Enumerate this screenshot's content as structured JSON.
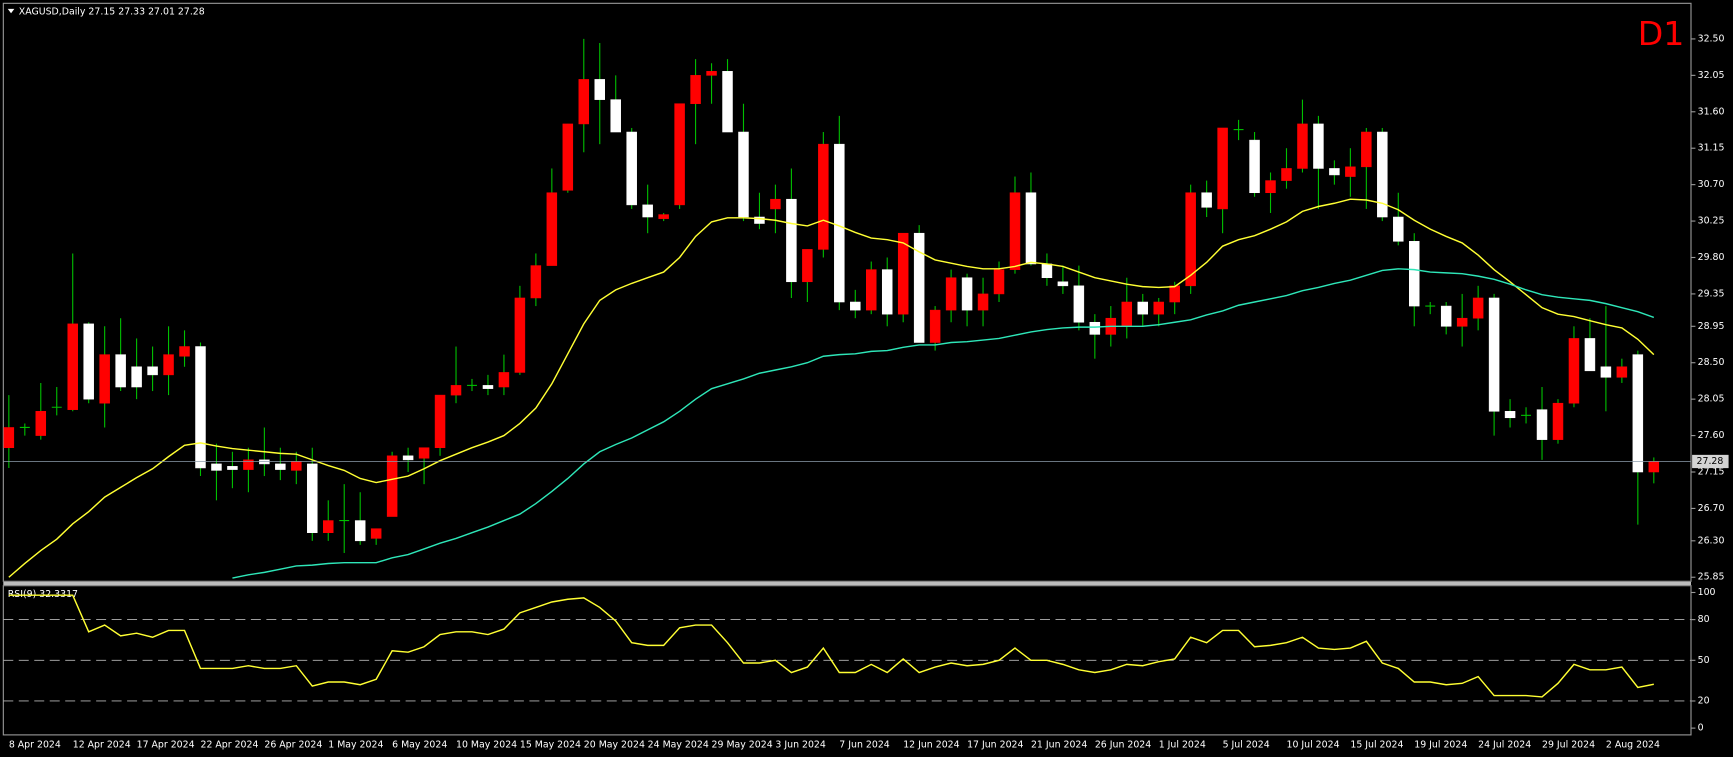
{
  "chart_data": [
    {
      "type": "candlestick",
      "title": "XAGUSD,Daily  27.15 27.33 27.01 27.28",
      "timeframe": "D1",
      "categories": [
        "8 Apr 2024",
        null,
        null,
        null,
        "12 Apr 2024",
        null,
        null,
        null,
        "17 Apr 2024",
        null,
        null,
        null,
        "22 Apr 2024",
        null,
        null,
        null,
        "26 Apr 2024",
        null,
        null,
        null,
        "1 May 2024",
        null,
        null,
        null,
        "6 May 2024",
        null,
        null,
        null,
        "10 May 2024",
        null,
        null,
        null,
        "15 May 2024",
        null,
        null,
        null,
        "20 May 2024",
        null,
        null,
        null,
        "24 May 2024",
        null,
        null,
        null,
        "29 May 2024",
        null,
        null,
        null,
        "3 Jun 2024",
        null,
        null,
        null,
        "7 Jun 2024",
        null,
        null,
        null,
        "12 Jun 2024",
        null,
        null,
        null,
        "17 Jun 2024",
        null,
        null,
        null,
        "21 Jun 2024",
        null,
        null,
        null,
        "26 Jun 2024",
        null,
        null,
        null,
        "1 Jul 2024",
        null,
        null,
        null,
        "5 Jul 2024",
        null,
        null,
        null,
        "10 Jul 2024",
        null,
        null,
        null,
        "15 Jul 2024",
        null,
        null,
        null,
        "19 Jul 2024",
        null,
        null,
        null,
        "24 Jul 2024",
        null,
        null,
        null,
        "29 Jul 2024",
        null,
        null,
        null,
        "2 Aug 2024",
        null,
        null,
        null
      ],
      "open": [
        27.45,
        27.7,
        27.6,
        27.95,
        27.92,
        28.98,
        28.0,
        28.6,
        28.45,
        28.45,
        28.35,
        28.58,
        28.7,
        27.25,
        27.22,
        27.18,
        27.3,
        27.25,
        27.17,
        27.25,
        26.4,
        26.55,
        26.55,
        26.33,
        26.6,
        27.35,
        27.32,
        27.45,
        28.1,
        28.22,
        28.22,
        28.2,
        28.38,
        29.3,
        29.7,
        30.63,
        31.45,
        32.0,
        31.75,
        31.35,
        30.45,
        30.28,
        30.45,
        31.7,
        32.05,
        32.1,
        31.35,
        30.3,
        30.4,
        30.52,
        29.5,
        29.9,
        31.2,
        29.25,
        29.15,
        29.65,
        29.1,
        30.1,
        28.75,
        29.15,
        29.55,
        29.15,
        29.35,
        29.65,
        30.6,
        29.72,
        29.5,
        29.45,
        29.0,
        28.85,
        28.95,
        29.25,
        29.1,
        29.25,
        29.45,
        30.6,
        30.4,
        31.38,
        31.25,
        30.6,
        30.75,
        30.9,
        31.45,
        30.9,
        30.8,
        30.92,
        31.35,
        30.3,
        30.0,
        29.2,
        29.2,
        28.95,
        29.05,
        29.3,
        27.9,
        27.85,
        27.92,
        27.55,
        28.0,
        28.8,
        28.45,
        28.32,
        28.6,
        27.15
      ],
      "high": [
        28.1,
        27.75,
        28.25,
        28.2,
        29.85,
        29.0,
        28.95,
        29.05,
        28.8,
        28.7,
        28.95,
        28.9,
        28.75,
        27.5,
        27.4,
        27.45,
        27.7,
        27.45,
        27.4,
        27.45,
        26.8,
        27.0,
        26.9,
        26.45,
        27.4,
        27.45,
        27.45,
        28.1,
        28.7,
        28.3,
        28.35,
        28.6,
        29.45,
        29.85,
        30.9,
        31.45,
        32.5,
        32.45,
        32.05,
        31.4,
        30.7,
        30.35,
        31.7,
        32.25,
        32.2,
        32.25,
        31.7,
        30.6,
        30.7,
        30.9,
        29.9,
        31.35,
        31.55,
        29.4,
        29.75,
        29.8,
        30.1,
        30.2,
        29.2,
        29.65,
        29.6,
        29.55,
        29.75,
        30.8,
        30.85,
        29.85,
        29.7,
        29.7,
        29.1,
        29.2,
        29.55,
        29.35,
        29.3,
        29.5,
        30.7,
        30.75,
        31.4,
        31.5,
        31.35,
        30.85,
        31.15,
        31.75,
        31.55,
        31.0,
        31.15,
        31.4,
        31.4,
        30.6,
        30.1,
        29.25,
        29.25,
        29.35,
        29.45,
        29.35,
        28.05,
        27.95,
        28.2,
        28.05,
        28.95,
        29.05,
        29.2,
        28.55,
        28.65,
        27.33
      ],
      "low": [
        27.2,
        27.6,
        27.55,
        27.85,
        27.9,
        28.0,
        27.7,
        28.15,
        28.05,
        28.15,
        28.1,
        28.45,
        27.1,
        26.8,
        26.95,
        26.9,
        27.1,
        27.05,
        27.0,
        26.3,
        26.3,
        26.15,
        26.25,
        26.25,
        26.6,
        27.15,
        27.0,
        27.35,
        28.0,
        28.15,
        28.1,
        28.1,
        28.35,
        29.2,
        29.7,
        30.6,
        31.1,
        31.2,
        31.35,
        30.4,
        30.1,
        30.25,
        30.4,
        31.2,
        31.7,
        31.35,
        30.25,
        30.15,
        30.1,
        29.3,
        29.25,
        29.8,
        29.15,
        29.05,
        29.1,
        28.95,
        29.0,
        28.75,
        28.65,
        29.0,
        28.95,
        28.95,
        29.25,
        29.6,
        29.7,
        29.45,
        29.35,
        28.9,
        28.55,
        28.7,
        28.8,
        28.95,
        28.95,
        29.1,
        29.35,
        30.3,
        30.1,
        31.25,
        30.55,
        30.35,
        30.65,
        30.85,
        30.4,
        30.7,
        30.55,
        30.4,
        30.25,
        29.95,
        28.95,
        29.1,
        28.85,
        28.7,
        28.9,
        27.6,
        27.7,
        27.75,
        27.3,
        27.5,
        27.95,
        28.4,
        27.9,
        28.25,
        26.5,
        27.01
      ],
      "close": [
        27.7,
        27.7,
        27.9,
        27.95,
        28.98,
        28.05,
        28.6,
        28.2,
        28.2,
        28.35,
        28.6,
        28.7,
        27.2,
        27.17,
        27.18,
        27.3,
        27.25,
        27.18,
        27.28,
        26.4,
        26.55,
        26.55,
        26.3,
        26.45,
        27.35,
        27.3,
        27.45,
        28.1,
        28.22,
        28.22,
        28.18,
        28.38,
        29.3,
        29.7,
        30.6,
        31.45,
        32.0,
        31.75,
        31.35,
        30.45,
        30.3,
        30.33,
        31.7,
        32.05,
        32.1,
        31.35,
        30.3,
        30.22,
        30.52,
        29.5,
        29.9,
        31.2,
        29.25,
        29.15,
        29.65,
        29.1,
        30.1,
        28.75,
        29.15,
        29.55,
        29.15,
        29.35,
        29.65,
        30.6,
        29.72,
        29.55,
        29.45,
        29.0,
        28.85,
        29.05,
        29.25,
        29.1,
        29.25,
        29.45,
        30.6,
        30.42,
        31.4,
        31.38,
        30.6,
        30.75,
        30.9,
        31.45,
        30.9,
        30.82,
        30.92,
        31.35,
        30.3,
        30.0,
        29.2,
        29.2,
        28.95,
        29.05,
        29.3,
        27.9,
        27.82,
        27.85,
        27.55,
        28.0,
        28.8,
        28.4,
        28.32,
        28.45,
        27.15,
        27.28
      ],
      "up_color": "#ff0000",
      "down_color": "#ffffff",
      "wick_color": "#00c000",
      "lines": [
        {
          "color": "#ffff33",
          "values": [
            25.85,
            26.02,
            26.18,
            26.32,
            26.51,
            26.66,
            26.84,
            26.96,
            27.08,
            27.19,
            27.34,
            27.48,
            27.51,
            27.47,
            27.44,
            27.42,
            27.4,
            27.38,
            27.37,
            27.3,
            27.23,
            27.17,
            27.07,
            27.02,
            27.06,
            27.1,
            27.19,
            27.29,
            27.37,
            27.45,
            27.52,
            27.6,
            27.75,
            27.94,
            28.24,
            28.61,
            28.98,
            29.27,
            29.4,
            29.48,
            29.55,
            29.62,
            29.8,
            30.06,
            30.24,
            30.29,
            30.29,
            30.28,
            30.26,
            30.22,
            30.19,
            30.26,
            30.19,
            30.11,
            30.04,
            30.02,
            29.98,
            29.87,
            29.77,
            29.73,
            29.69,
            29.66,
            29.66,
            29.69,
            29.74,
            29.72,
            29.69,
            29.62,
            29.55,
            29.51,
            29.47,
            29.44,
            29.43,
            29.44,
            29.58,
            29.74,
            29.94,
            30.02,
            30.07,
            30.15,
            30.24,
            30.37,
            30.43,
            30.47,
            30.52,
            30.51,
            30.47,
            30.39,
            30.26,
            30.15,
            30.06,
            29.98,
            29.83,
            29.65,
            29.5,
            29.34,
            29.18,
            29.1,
            29.07,
            29.02,
            28.97,
            28.93,
            28.79,
            28.6
          ]
        },
        {
          "color": "#2ee6b8",
          "values": [
            null,
            null,
            null,
            null,
            null,
            null,
            null,
            null,
            null,
            null,
            null,
            null,
            null,
            null,
            25.84,
            25.88,
            25.91,
            25.95,
            25.99,
            26.0,
            26.02,
            26.03,
            26.03,
            26.03,
            26.09,
            26.13,
            26.2,
            26.27,
            26.33,
            26.4,
            26.47,
            26.55,
            26.63,
            26.76,
            26.91,
            27.07,
            27.25,
            27.4,
            27.49,
            27.57,
            27.67,
            27.77,
            27.9,
            28.05,
            28.18,
            28.24,
            28.3,
            28.37,
            28.41,
            28.45,
            28.5,
            28.58,
            28.6,
            28.61,
            28.64,
            28.65,
            28.69,
            28.72,
            28.72,
            28.75,
            28.76,
            28.78,
            28.8,
            28.84,
            28.88,
            28.91,
            28.93,
            28.94,
            28.94,
            28.95,
            28.95,
            28.95,
            28.97,
            29.0,
            29.03,
            29.09,
            29.14,
            29.21,
            29.25,
            29.29,
            29.33,
            29.39,
            29.43,
            29.48,
            29.52,
            29.58,
            29.64,
            29.66,
            29.65,
            29.62,
            29.61,
            29.6,
            29.57,
            29.53,
            29.47,
            29.4,
            29.34,
            29.31,
            29.29,
            29.27,
            29.23,
            29.18,
            29.13,
            29.06
          ]
        }
      ],
      "last_price": 27.28,
      "ylim": [
        25.8,
        32.94
      ],
      "yticks": [
        {
          "value": 32.5,
          "label": "32.50"
        },
        32.05,
        {
          "value": 31.6,
          "label": "31.60"
        },
        31.15,
        {
          "value": 30.7,
          "label": "30.70"
        },
        30.25,
        {
          "value": 29.8,
          "label": "29.80"
        },
        29.35,
        28.95,
        {
          "value": 28.5,
          "label": "28.50"
        },
        28.05,
        {
          "value": 27.6,
          "label": "27.60"
        },
        27.15,
        {
          "value": 26.7,
          "label": "26.70"
        },
        {
          "value": 26.3,
          "label": "26.30"
        },
        25.85
      ]
    },
    {
      "type": "line",
      "title": "RSI(9) 32.3317",
      "color": "#ffff33",
      "values": [
        98,
        98,
        98,
        98,
        98,
        71,
        76,
        68,
        70,
        67,
        72,
        72,
        44,
        44,
        44,
        46,
        44,
        44,
        46,
        31,
        34,
        34,
        32,
        36,
        57,
        56,
        60,
        69,
        71,
        71,
        69,
        73,
        85,
        89,
        93,
        95,
        96,
        89,
        79,
        63,
        61,
        61,
        74,
        76,
        76,
        63,
        48,
        48,
        50,
        41,
        45,
        59,
        41,
        41,
        47,
        41,
        51,
        41,
        45,
        48,
        46,
        47,
        50,
        59,
        50,
        50,
        47,
        43,
        41,
        43,
        47,
        46,
        49,
        51,
        67,
        63,
        72,
        72,
        60,
        61,
        63,
        67,
        59,
        58,
        59,
        64,
        48,
        44,
        34,
        34,
        32,
        33,
        38,
        24,
        24,
        24,
        23,
        33,
        47,
        43,
        43,
        45,
        30,
        32.3317
      ],
      "levels": [
        80,
        50,
        20
      ],
      "ylim": [
        -5,
        105
      ],
      "yticks": [
        100,
        80,
        50,
        20,
        0
      ]
    }
  ]
}
